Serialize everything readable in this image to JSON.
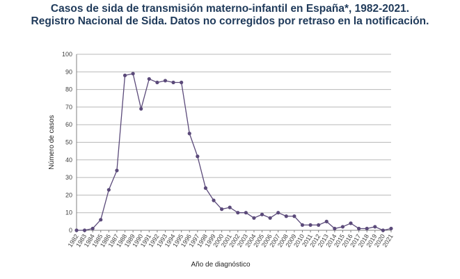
{
  "title_line1": "Casos de sida de transmisión materno-infantil en España*, 1982-2021.",
  "title_line2": "Registro Nacional de Sida. Datos no corregidos por retraso en la notificación.",
  "chart_data": {
    "type": "line",
    "xlabel": "Año de diagnóstico",
    "ylabel": "Número de casos",
    "ylim": [
      0,
      100
    ],
    "yticks": [
      0,
      10,
      20,
      30,
      40,
      50,
      60,
      70,
      80,
      90,
      100
    ],
    "grid": true,
    "line_color": "#5b4a7a",
    "categories": [
      "1982",
      "1983",
      "1984",
      "1985",
      "1986",
      "1987",
      "1988",
      "1989",
      "1990",
      "1991",
      "1992",
      "1993",
      "1994",
      "1995",
      "1996",
      "1997",
      "1998",
      "1999",
      "2000",
      "2001",
      "2002",
      "2003",
      "2004",
      "2005",
      "2006",
      "2007",
      "2008",
      "2009",
      "2010",
      "2011",
      "2012",
      "2013",
      "2014",
      "2015",
      "2016",
      "2017",
      "2018",
      "2019",
      "2020",
      "2021"
    ],
    "series": [
      {
        "values": [
          0,
          0,
          1,
          6,
          23,
          34,
          88,
          89,
          69,
          86,
          84,
          85,
          84,
          84,
          55,
          42,
          24,
          17,
          12,
          13,
          10,
          10,
          7,
          9,
          7,
          10,
          8,
          8,
          3,
          3,
          3,
          5,
          1,
          2,
          4,
          1,
          1,
          2,
          0,
          1
        ]
      }
    ]
  }
}
